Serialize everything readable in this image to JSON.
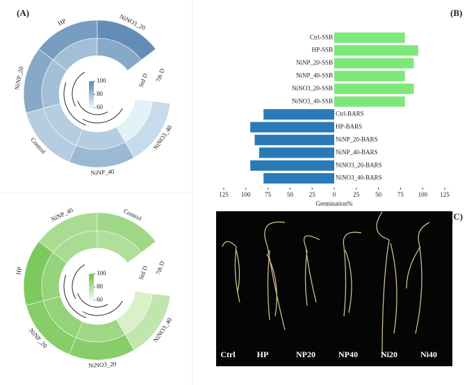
{
  "panels": [
    "(A)",
    "(B)",
    "(C)"
  ],
  "chart_data": [
    {
      "type": "circular-heatmap",
      "categories": [
        "NiNO3_40",
        "NiNP_40",
        "Control",
        "NiNP_20",
        "HP",
        "NiNO3_20"
      ],
      "series": [
        {
          "name": "7th D",
          "values": [
            70,
            82,
            75,
            88,
            92,
            98
          ]
        },
        {
          "name": "Std D",
          "values": [
            62,
            75,
            75,
            80,
            80,
            88
          ]
        }
      ],
      "clim": [
        60,
        100
      ],
      "cticks": [
        60,
        80,
        100
      ],
      "colors": [
        "#eaf7fc",
        "#5c87b2"
      ]
    },
    {
      "type": "circular-heatmap",
      "categories": [
        "NiNO3_40",
        "NiNO3_20",
        "NiNP_20",
        "HP",
        "NiNP_40",
        "Control"
      ],
      "series": [
        {
          "name": "7th D",
          "values": [
            75,
            92,
            92,
            95,
            82,
            85
          ]
        },
        {
          "name": "Std D",
          "values": [
            68,
            85,
            88,
            88,
            82,
            80
          ]
        }
      ],
      "clim": [
        60,
        100
      ],
      "cticks": [
        60,
        80,
        100
      ],
      "colors": [
        "#f4fbe9",
        "#6cc24a"
      ]
    },
    {
      "type": "bar",
      "orientation": "horizontal",
      "categories": [
        "Ctrl-SSB",
        "HP-SSB",
        "NiNP_20-SSB",
        "NiNP_40-SSB",
        "NiNO3_20-SSB",
        "NiNO3_40-SSB",
        "Ctrl-BARS",
        "HP-BARS",
        "NiNP_20-BARS",
        "NiNP_40-BARS",
        "NiNO3_20-BARS",
        "NiNO3_40-BARS"
      ],
      "series": [
        {
          "color": "#7de87a",
          "values": [
            80,
            95,
            90,
            80,
            90,
            80,
            null,
            null,
            null,
            null,
            null,
            null
          ]
        },
        {
          "color": "#2a7ab8",
          "values": [
            null,
            null,
            null,
            null,
            null,
            null,
            -80,
            -95,
            -90,
            -85,
            -95,
            -80
          ]
        }
      ],
      "xlim": [
        -125,
        125
      ],
      "xticks": [
        {
          "value": -125,
          "label": "125"
        },
        {
          "value": -100,
          "label": "100"
        },
        {
          "value": -75,
          "label": "75"
        },
        {
          "value": -50,
          "label": "50"
        },
        {
          "value": -25,
          "label": "25"
        },
        0,
        25,
        50,
        75,
        100,
        125
      ],
      "xlabel": "Germination%"
    }
  ],
  "photo": {
    "labels": [
      "Ctrl",
      "HP",
      "NP20",
      "NP40",
      "Ni20",
      "Ni40"
    ]
  }
}
